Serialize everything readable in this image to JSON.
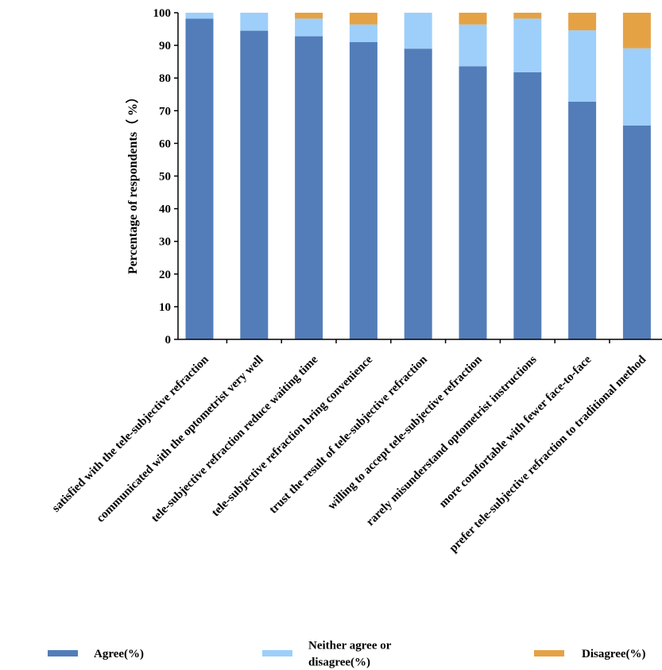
{
  "chart_data": {
    "type": "bar",
    "stacked": true,
    "title": "",
    "xlabel": "",
    "ylabel": "Percentage of respondents（ %）",
    "ylim": [
      0,
      100
    ],
    "yticks": [
      "0",
      "10",
      "20",
      "30",
      "40",
      "50",
      "60",
      "70",
      "80",
      "90",
      "100"
    ],
    "grid": false,
    "legend_position": "bottom",
    "categories": [
      "satisfied with the tele-subjective refraction",
      "communicated with the optometrist very well",
      "tele-subjective refraction reduce waiting time",
      "tele-subjective refraction bring convenience",
      "trust the result of tele-subjective refraction",
      "willing to accept tele-subjective refraction",
      "rarely misunderstand optometrist instructions",
      "more comfortable with fewer face-to-face",
      "prefer tele-subjective refraction to traditional method"
    ],
    "series": [
      {
        "name": "Agree(%)",
        "legend_lines": [
          "Agree(%)"
        ],
        "color": "#537db9",
        "values": [
          98.2,
          94.5,
          92.8,
          91.0,
          89.0,
          83.6,
          81.8,
          72.8,
          65.5
        ]
      },
      {
        "name": "Neither agree or disagree(%)",
        "legend_lines": [
          "Neither agree or",
          "disagree(%)"
        ],
        "color": "#9dcffa",
        "values": [
          1.8,
          5.5,
          5.4,
          5.4,
          11.0,
          12.8,
          16.4,
          21.8,
          23.6
        ]
      },
      {
        "name": "Disagree(%)",
        "legend_lines": [
          "Disagree(%)"
        ],
        "color": "#e5a245",
        "values": [
          0.0,
          0.0,
          1.8,
          3.6,
          0.0,
          3.6,
          1.8,
          5.4,
          10.9
        ]
      }
    ]
  }
}
